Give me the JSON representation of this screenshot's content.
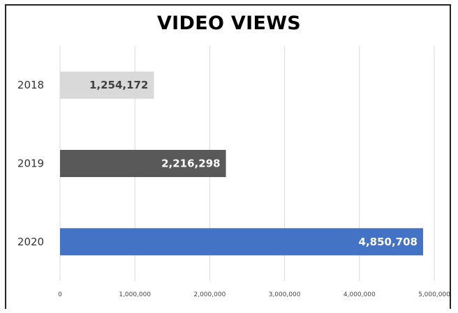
{
  "chart_data": {
    "type": "bar",
    "orientation": "horizontal",
    "title": "VIDEO VIEWS",
    "categories": [
      "2018",
      "2019",
      "2020"
    ],
    "values": [
      1254172,
      2216298,
      4850708
    ],
    "data_labels": [
      "1,254,172",
      "2,216,298",
      "4,850,708"
    ],
    "bar_colors": [
      "#d9d9d9",
      "#595959",
      "#4472c4"
    ],
    "label_colors": [
      "#404040",
      "#ffffff",
      "#ffffff"
    ],
    "xlim": [
      0,
      5000000
    ],
    "xticks": [
      0,
      1000000,
      2000000,
      3000000,
      4000000,
      5000000
    ],
    "xtick_labels": [
      "0",
      "1,000,000",
      "2,000,000",
      "3,000,000",
      "4,000,000",
      "5,000,000"
    ],
    "grid": true,
    "legend": "none"
  }
}
